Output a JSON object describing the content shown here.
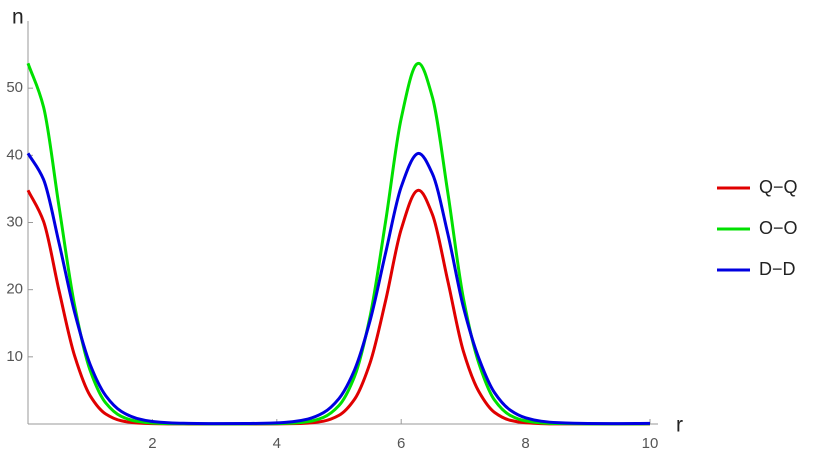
{
  "chart_data": {
    "type": "line",
    "x_label": "r",
    "y_label": "n",
    "x": [
      0,
      0.25,
      0.5,
      0.75,
      1,
      1.25,
      1.5,
      1.75,
      2,
      2.25,
      2.5,
      3,
      3.5,
      4,
      4.25,
      4.5,
      4.75,
      5,
      5.25,
      5.5,
      5.75,
      6,
      6.25,
      6.28,
      6.5,
      6.75,
      7,
      7.25,
      7.5,
      7.75,
      8,
      8.25,
      8.5,
      9,
      9.5,
      10
    ],
    "series": [
      {
        "name": "Q−Q",
        "color": "#e00000",
        "values": [
          34.8,
          30.16,
          19.82,
          10.13,
          4.2,
          1.49,
          0.48,
          0.15,
          0.05,
          0.02,
          0.01,
          0,
          0,
          0.02,
          0.05,
          0.13,
          0.42,
          1.29,
          3.68,
          9.11,
          18.39,
          28.98,
          34.71,
          34.8,
          31.24,
          21.26,
          10.82,
          4.8,
          1.73,
          0.56,
          0.18,
          0.06,
          0.02,
          0.01,
          0,
          0.01
        ]
      },
      {
        "name": "O−O",
        "color": "#00e000",
        "values": [
          53.7,
          47.2,
          32.3,
          17.6,
          7.97,
          3.13,
          1.13,
          0.4,
          0.15,
          0.06,
          0.03,
          0.01,
          0.02,
          0.06,
          0.13,
          0.35,
          0.99,
          2.75,
          7.08,
          16.04,
          30.2,
          45.5,
          53.58,
          53.7,
          48.7,
          34.4,
          18.7,
          9,
          3.57,
          1.3,
          0.46,
          0.17,
          0.07,
          0.02,
          0.01,
          0.03
        ]
      },
      {
        "name": "D−D",
        "color": "#0000e0",
        "values": [
          40.3,
          36.4,
          26.9,
          16.6,
          8.84,
          4.21,
          1.88,
          0.83,
          0.38,
          0.19,
          0.11,
          0.06,
          0.07,
          0.17,
          0.34,
          0.74,
          1.68,
          3.79,
          8.05,
          15.4,
          25.5,
          35.3,
          40.2,
          40.3,
          37.3,
          28.3,
          17.4,
          9.74,
          4.67,
          2.09,
          0.92,
          0.42,
          0.2,
          0.07,
          0.06,
          0.09
        ]
      }
    ],
    "xlim": [
      0,
      10
    ],
    "ylim": [
      0,
      60
    ],
    "xticks": [
      2,
      4,
      6,
      8,
      10
    ],
    "yticks": [
      10,
      20,
      30,
      40,
      50
    ],
    "grid": false,
    "legend": "right"
  }
}
